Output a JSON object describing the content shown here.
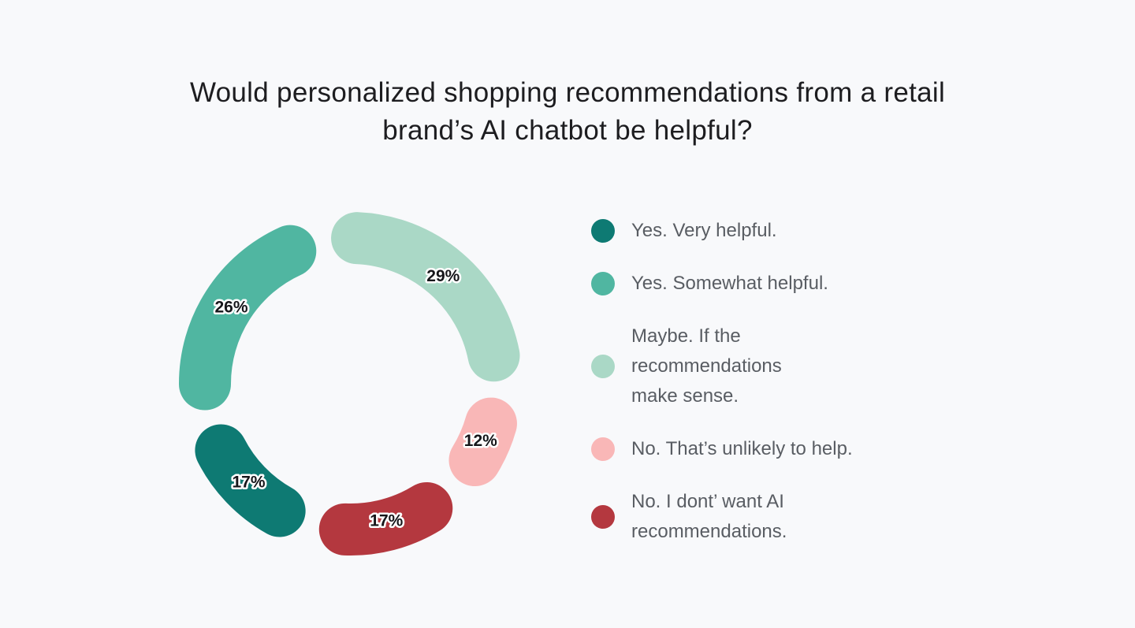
{
  "page": {
    "background_color": "#f8f9fb"
  },
  "title": {
    "line1": "Would personalized shopping recommendations from a retail",
    "line2": "brand’s AI chatbot be helpful?"
  },
  "chart_data": {
    "type": "donut",
    "title": "Would personalized shopping recommendations from a retail brand’s AI chatbot be helpful?",
    "value_suffix": "%",
    "legend_position": "right",
    "start_rotation_deg": -11,
    "pad_angle_deg": 13.5,
    "items": [
      {
        "label": "Yes. Very helpful.",
        "value": 17,
        "color": "#0e7a73"
      },
      {
        "label": "Yes. Somewhat helpful.",
        "value": 26,
        "color": "#50b6a1"
      },
      {
        "label": "Maybe. If the\nrecommendations\nmake sense.",
        "value": 29,
        "color": "#aad8c6"
      },
      {
        "label": "No. That’s unlikely to help.",
        "value": 12,
        "color": "#f9b7b7"
      },
      {
        "label": "No. I dont’ want AI\nrecommendations.",
        "value": 17,
        "color": "#b4383f"
      }
    ],
    "draw_order": [
      2,
      3,
      4,
      0,
      1
    ]
  }
}
